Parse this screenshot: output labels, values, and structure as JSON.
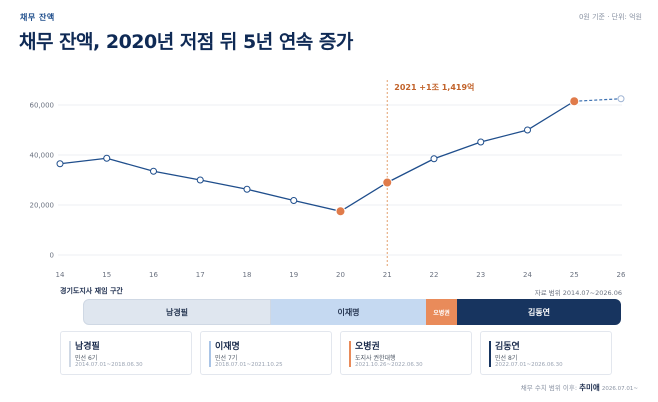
{
  "header": {
    "tag": "채무 잔액",
    "title": "채무 잔액, 2020년 저점 뒤 5년 연속 증가",
    "unit_note": "0원 기준 · 단위: 억원"
  },
  "chart_data": {
    "type": "line",
    "x": [
      "14",
      "15",
      "16",
      "17",
      "18",
      "19",
      "20",
      "21",
      "22",
      "23",
      "24",
      "25",
      "26"
    ],
    "values": [
      36500,
      38700,
      33500,
      30000,
      26300,
      21800,
      17500,
      29000,
      38500,
      45200,
      50000,
      61500,
      62500
    ],
    "projected_from_index": 11,
    "highlight_indices": [
      6,
      7,
      11
    ],
    "yticks": [
      "60,000",
      "40,000",
      "20,000",
      "0"
    ],
    "ytick_values": [
      60000,
      40000,
      20000,
      0
    ],
    "ylim": [
      0,
      65000
    ],
    "annotation": {
      "x_index": 7,
      "label": "2021 +1조 1,419억"
    },
    "colors": {
      "line": "#1f4e8c",
      "highlight": "#e07b4a",
      "dashed": "#3a6fb0",
      "marker_line": "#e4a06e"
    }
  },
  "governors": {
    "section_title": "경기도지사 재임 구간",
    "range_note": "자료 범위 2014.07~2026.06",
    "bars": [
      {
        "label": "남경필",
        "from": 14.5,
        "to": 18.5
      },
      {
        "label": "이재명",
        "from": 18.5,
        "to": 21.8
      },
      {
        "label": "오병권",
        "from": 21.8,
        "to": 22.5
      },
      {
        "label": "김동연",
        "from": 22.5,
        "to": 26.0
      }
    ],
    "cards": [
      {
        "name": "남경필",
        "role": "민선 6기",
        "period": "2014.07.01~2018.06.30",
        "color": "#cfd8e4"
      },
      {
        "name": "이재명",
        "role": "민선 7기",
        "period": "2018.07.01~2021.10.25",
        "color": "#a9c4e6"
      },
      {
        "name": "오병권",
        "role": "도지사 권한대행",
        "period": "2021.10.26~2022.06.30",
        "color": "#e98b5a"
      },
      {
        "name": "김동연",
        "role": "민선 8기",
        "period": "2022.07.01~2026.06.30",
        "color": "#17345f"
      }
    ]
  },
  "footer": {
    "prefix": "채무 수치 범위 이후:",
    "name": "추미애",
    "date": "2026.07.01~"
  }
}
